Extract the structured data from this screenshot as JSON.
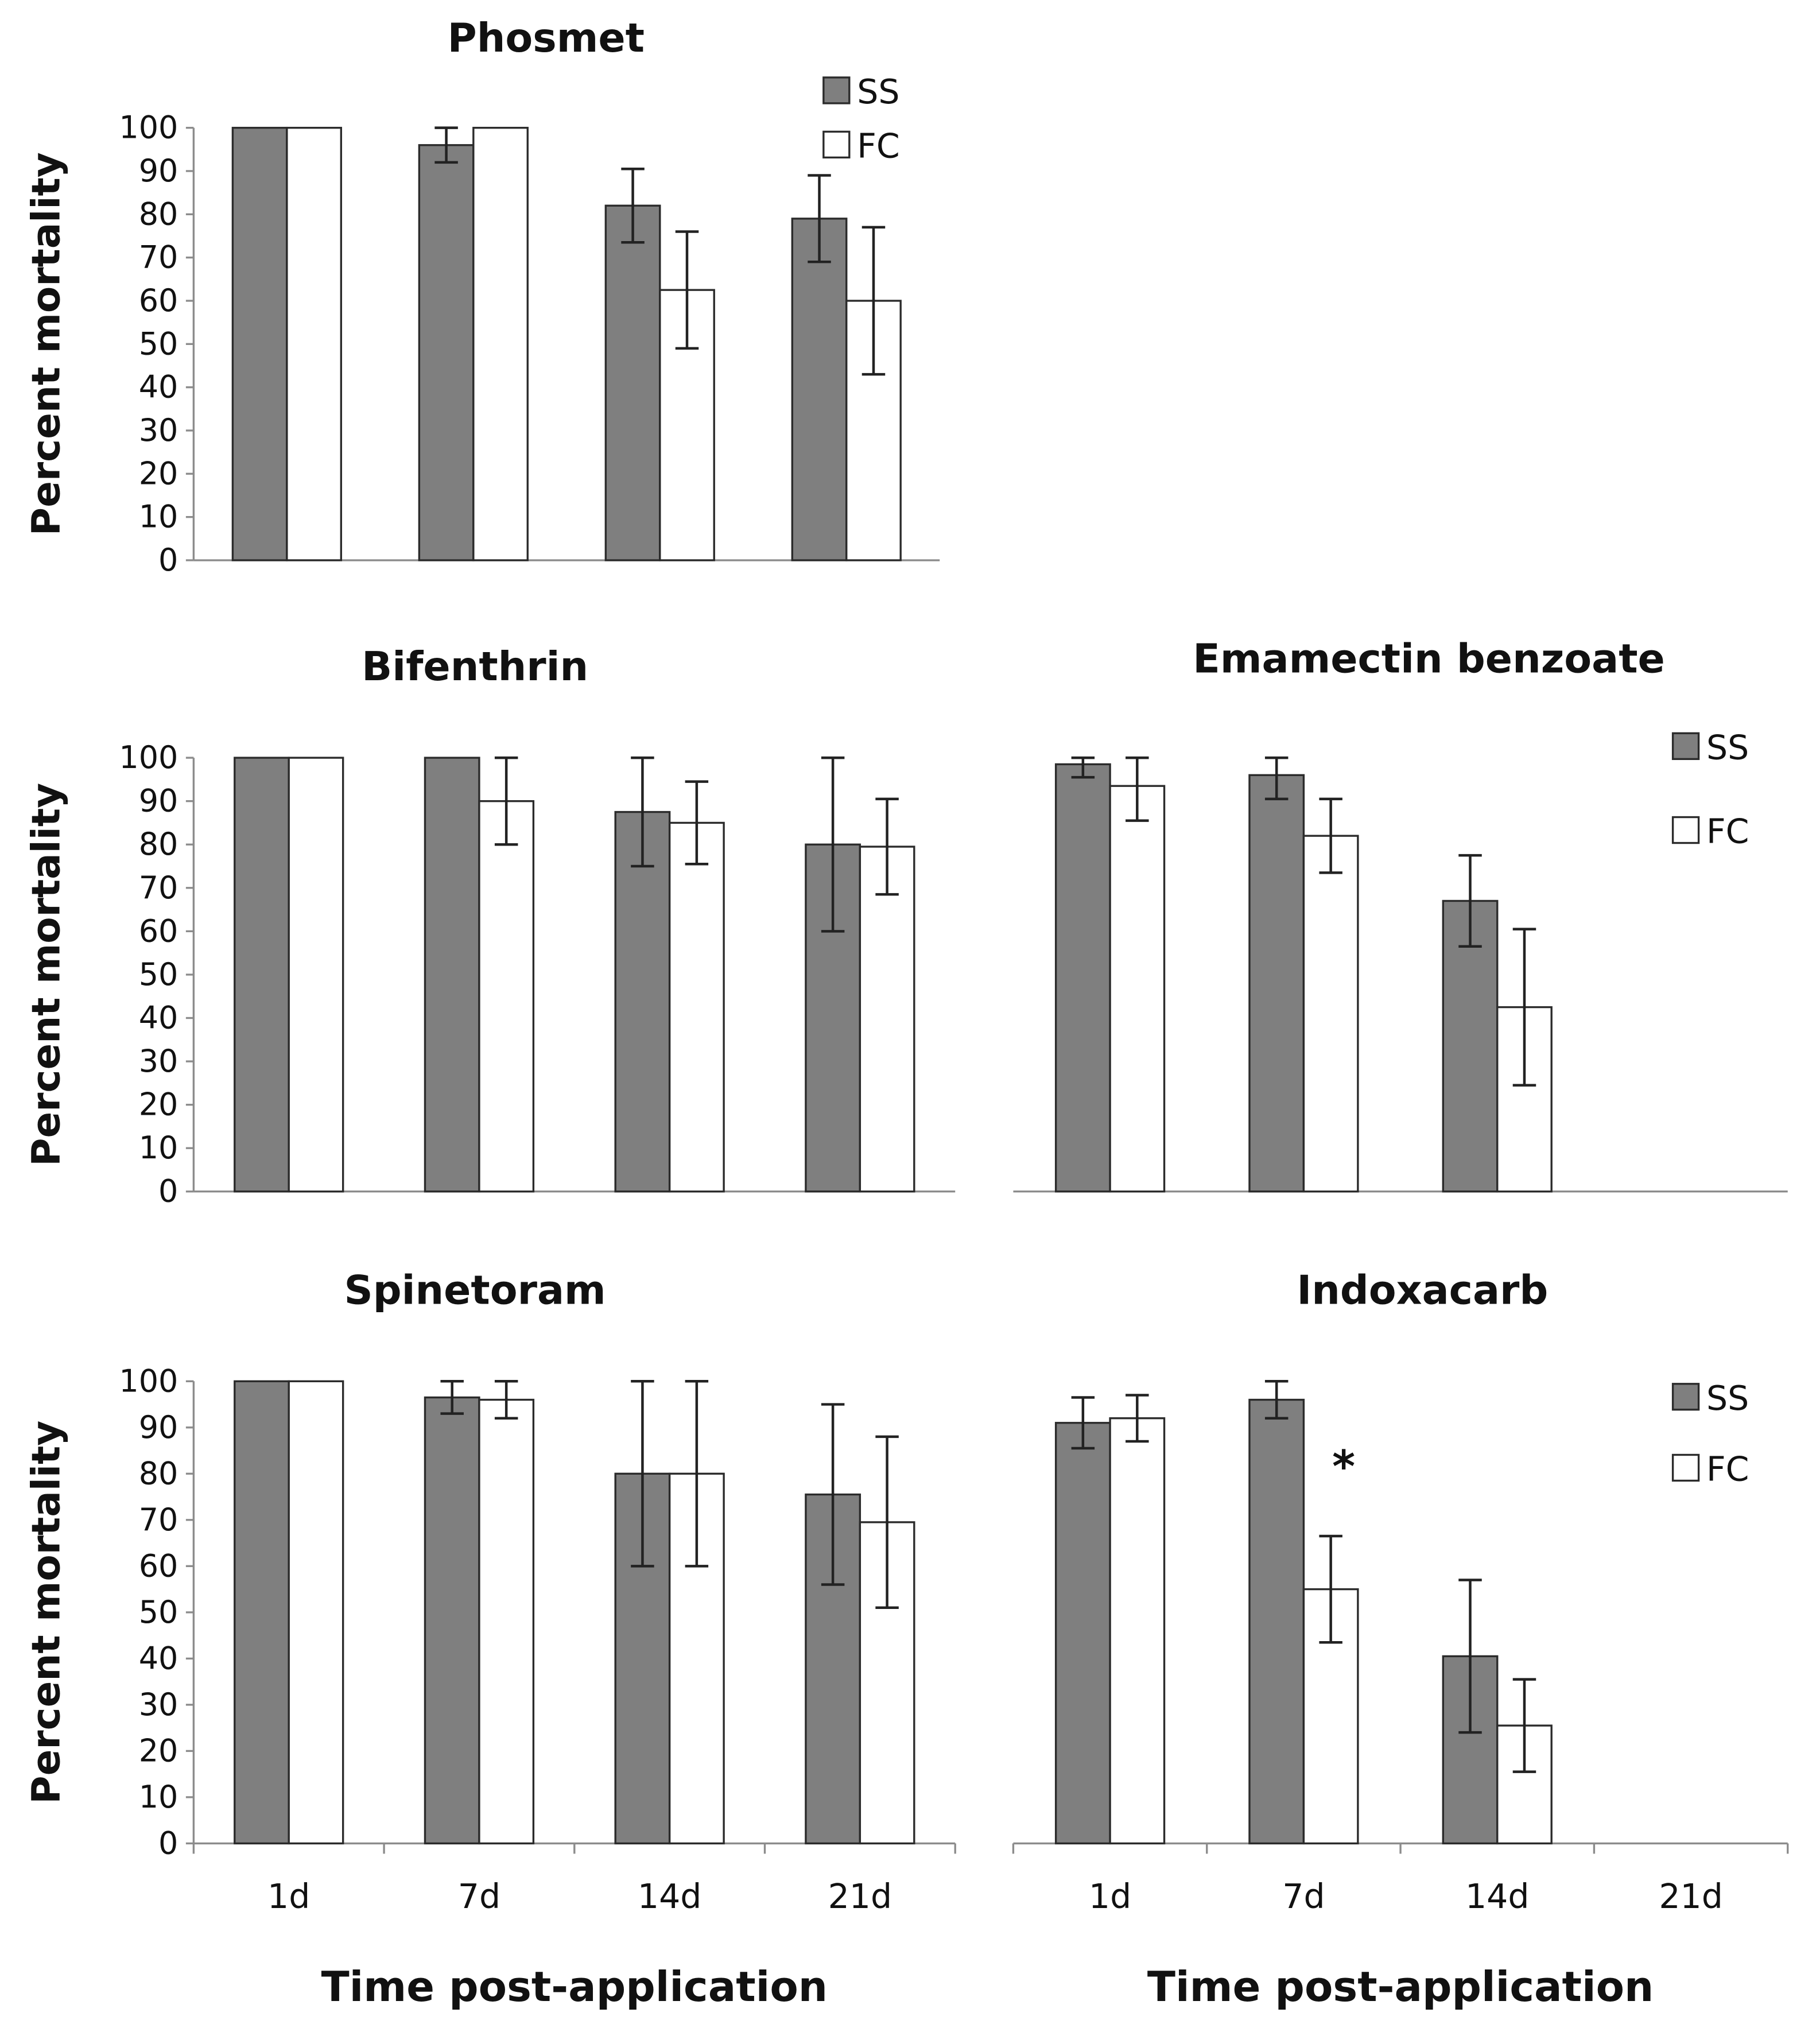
{
  "colors": {
    "SS": "#7f7f7f",
    "FC": "#ffffff",
    "outline": "#2b2b2b",
    "axis": "#8c8c8c"
  },
  "shared": {
    "ylabel": "Percent mortality",
    "xlabel": "Time post-application",
    "categories": [
      "1d",
      "7d",
      "14d",
      "21d"
    ],
    "yticks": [
      "0",
      "10",
      "20",
      "30",
      "40",
      "50",
      "60",
      "70",
      "80",
      "90",
      "100"
    ]
  },
  "chart_data": [
    {
      "type": "bar",
      "title": "Phosmet",
      "ylabel": "Percent mortality",
      "ylim": [
        0,
        100
      ],
      "categories": [
        "1d",
        "7d",
        "14d",
        "21d"
      ],
      "legend": [
        "SS",
        "FC"
      ],
      "series": [
        {
          "name": "SS",
          "values": [
            100,
            96,
            82,
            79
          ],
          "errors": [
            0,
            4,
            8.5,
            10
          ]
        },
        {
          "name": "FC",
          "values": [
            100,
            100,
            62.5,
            60
          ],
          "errors": [
            0,
            0,
            13.5,
            17
          ]
        }
      ],
      "annotations": []
    },
    {
      "type": "bar",
      "title": "Bifenthrin",
      "ylabel": "Percent mortality",
      "ylim": [
        0,
        100
      ],
      "categories": [
        "1d",
        "7d",
        "14d",
        "21d"
      ],
      "legend": [],
      "series": [
        {
          "name": "SS",
          "values": [
            100,
            100,
            87.5,
            80
          ],
          "errors": [
            0,
            0,
            12.5,
            20
          ]
        },
        {
          "name": "FC",
          "values": [
            100,
            90,
            85,
            79.5
          ],
          "errors": [
            0,
            10,
            9.5,
            11
          ]
        }
      ],
      "annotations": []
    },
    {
      "type": "bar",
      "title": "Emamectin benzoate",
      "ylim": [
        0,
        100
      ],
      "categories": [
        "1d",
        "7d",
        "14d",
        "21d"
      ],
      "legend": [
        "SS",
        "FC"
      ],
      "series": [
        {
          "name": "SS",
          "values": [
            98.5,
            96,
            67,
            null
          ],
          "errors": [
            3,
            5.5,
            10.5,
            null
          ]
        },
        {
          "name": "FC",
          "values": [
            93.5,
            82,
            42.5,
            null
          ],
          "errors": [
            8,
            8.5,
            18,
            null
          ]
        }
      ],
      "annotations": []
    },
    {
      "type": "bar",
      "title": "Spinetoram",
      "ylabel": "Percent mortality",
      "xlabel": "Time post-application",
      "ylim": [
        0,
        100
      ],
      "categories": [
        "1d",
        "7d",
        "14d",
        "21d"
      ],
      "legend": [],
      "series": [
        {
          "name": "SS",
          "values": [
            100,
            96.5,
            80,
            75.5
          ],
          "errors": [
            0,
            3.5,
            20,
            19.5
          ]
        },
        {
          "name": "FC",
          "values": [
            100,
            96,
            80,
            69.5
          ],
          "errors": [
            0,
            4,
            20,
            18.5
          ]
        }
      ],
      "annotations": []
    },
    {
      "type": "bar",
      "title": "Indoxacarb",
      "xlabel": "Time post-application",
      "ylim": [
        0,
        100
      ],
      "categories": [
        "1d",
        "7d",
        "14d",
        "21d"
      ],
      "legend": [
        "SS",
        "FC"
      ],
      "series": [
        {
          "name": "SS",
          "values": [
            91,
            96,
            40.5,
            null
          ],
          "errors": [
            5.5,
            4,
            16.5,
            null
          ]
        },
        {
          "name": "FC",
          "values": [
            92,
            55,
            25.5,
            null
          ],
          "errors": [
            5,
            11.5,
            10,
            null
          ]
        }
      ],
      "annotations": [
        {
          "text": "*",
          "category": "7d",
          "series": "FC"
        }
      ]
    }
  ]
}
